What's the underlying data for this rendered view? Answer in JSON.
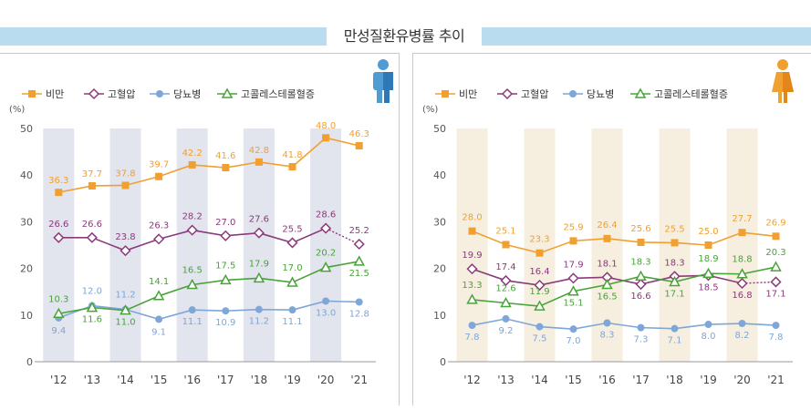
{
  "title": "만성질환유병률 추이",
  "chart_data": [
    {
      "type": "line",
      "gender": "male",
      "icon": "male-person-icon",
      "unit": "(%)",
      "categories": [
        "'12",
        "'13",
        "'14",
        "'15",
        "'16",
        "'17",
        "'18",
        "'19",
        "'20",
        "'21"
      ],
      "ylim": [
        0,
        50
      ],
      "yticks": [
        "0",
        "10",
        "20",
        "30",
        "40",
        "50"
      ],
      "shaded_band_color": "#e2e4ee",
      "series": [
        {
          "name": "비만",
          "color": "#f0a030",
          "marker": "square",
          "values": [
            36.3,
            37.7,
            37.8,
            39.7,
            42.2,
            41.6,
            42.8,
            41.8,
            48.0,
            46.3
          ],
          "labels": [
            "36.3",
            "37.7",
            "37.8",
            "39.7",
            "42.2",
            "41.6",
            "42.8",
            "41.8",
            "48.0",
            "46.3"
          ]
        },
        {
          "name": "고혈압",
          "color": "#8b3a7a",
          "marker": "diamond",
          "values": [
            26.6,
            26.6,
            23.8,
            26.3,
            28.2,
            27.0,
            27.6,
            25.5,
            28.6,
            25.2
          ],
          "labels": [
            "26.6",
            "26.6",
            "23.8",
            "26.3",
            "28.2",
            "27.0",
            "27.6",
            "25.5",
            "28.6",
            "25.2"
          ],
          "dotted_last": true
        },
        {
          "name": "당뇨병",
          "color": "#7ea6d8",
          "marker": "circle",
          "values": [
            9.4,
            12.0,
            11.2,
            9.1,
            11.1,
            10.9,
            11.2,
            11.1,
            13.0,
            12.8
          ],
          "labels": [
            "9.4",
            "12.0",
            "11.2",
            "9.1",
            "11.1",
            "10.9",
            "11.2",
            "11.1",
            "13.0",
            "12.8"
          ]
        },
        {
          "name": "고콜레스테롤혈증",
          "color": "#4aa33a",
          "marker": "triangle",
          "values": [
            10.3,
            11.6,
            11.0,
            14.1,
            16.5,
            17.5,
            17.9,
            17.0,
            20.2,
            21.5
          ],
          "labels": [
            "10.3",
            "11.6",
            "11.0",
            "14.1",
            "16.5",
            "17.5",
            "17.9",
            "17.0",
            "20.2",
            "21.5"
          ]
        }
      ]
    },
    {
      "type": "line",
      "gender": "female",
      "icon": "female-person-icon",
      "unit": "(%)",
      "categories": [
        "'12",
        "'13",
        "'14",
        "'15",
        "'16",
        "'17",
        "'18",
        "'19",
        "'20",
        "'21"
      ],
      "ylim": [
        0,
        50
      ],
      "yticks": [
        "0",
        "10",
        "20",
        "30",
        "40",
        "50"
      ],
      "shaded_band_color": "#f6efdf",
      "series": [
        {
          "name": "비만",
          "color": "#f0a030",
          "marker": "square",
          "values": [
            28.0,
            25.1,
            23.3,
            25.9,
            26.4,
            25.6,
            25.5,
            25.0,
            27.7,
            26.9
          ],
          "labels": [
            "28.0",
            "25.1",
            "23.3",
            "25.9",
            "26.4",
            "25.6",
            "25.5",
            "25.0",
            "27.7",
            "26.9"
          ]
        },
        {
          "name": "고혈압",
          "color": "#8b3a7a",
          "marker": "diamond",
          "values": [
            19.9,
            17.4,
            16.4,
            17.9,
            18.1,
            16.6,
            18.3,
            18.5,
            16.8,
            17.1
          ],
          "labels": [
            "19.9",
            "17.4",
            "16.4",
            "17.9",
            "18.1",
            "16.6",
            "18.3",
            "18.5",
            "16.8",
            "17.1"
          ],
          "dotted_last": true
        },
        {
          "name": "당뇨병",
          "color": "#7ea6d8",
          "marker": "circle",
          "values": [
            7.8,
            9.2,
            7.5,
            7.0,
            8.3,
            7.3,
            7.1,
            8.0,
            8.2,
            7.8
          ],
          "labels": [
            "7.8",
            "9.2",
            "7.5",
            "7.0",
            "8.3",
            "7.3",
            "7.1",
            "8.0",
            "8.2",
            "7.8"
          ]
        },
        {
          "name": "고콜레스테롤혈증",
          "color": "#4aa33a",
          "marker": "triangle",
          "values": [
            13.3,
            12.6,
            11.9,
            15.1,
            16.5,
            18.3,
            17.1,
            18.9,
            18.8,
            20.3
          ],
          "labels": [
            "13.3",
            "12.6",
            "11.9",
            "15.1",
            "16.5",
            "18.3",
            "17.1",
            "18.9",
            "18.8",
            "20.3"
          ]
        }
      ]
    }
  ]
}
